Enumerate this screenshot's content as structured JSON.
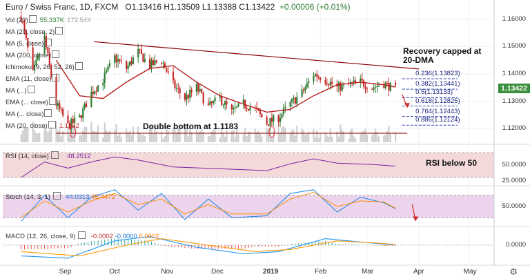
{
  "header": {
    "symbol": "Euro / Swiss Franc, 1D, FXCM",
    "ohlc": "O1.13416 H1.13509 L1.13388 C1.13422",
    "change": "+0.00006 (+0.01%)"
  },
  "indicators": [
    {
      "name": "vol",
      "label": "Vol (20)",
      "values": [
        "55.337K",
        "172.54K"
      ]
    },
    {
      "name": "ma20",
      "label": "MA (20, close, 2)",
      "values": []
    },
    {
      "name": "ma5",
      "label": "MA (5, close)",
      "values": []
    },
    {
      "name": "ma200",
      "label": "MA (200, close)",
      "values": []
    },
    {
      "name": "ichimoku",
      "label": "Ichimoku (9, 26, 52, 26)",
      "values": []
    },
    {
      "name": "ema11",
      "label": "EMA (11, close)",
      "values": []
    },
    {
      "name": "ma-b",
      "label": "MA (...)",
      "values": []
    },
    {
      "name": "ema",
      "label": "EMA (... close)",
      "values": []
    },
    {
      "name": "ma-c",
      "label": "MA (... close)",
      "values": []
    },
    {
      "name": "ma20-close",
      "label": "MA (20, close)",
      "values": [
        "1.1352"
      ]
    }
  ],
  "annotations": {
    "recovery_line1": "Recovery capped at",
    "recovery_line2": "20-DMA",
    "double_bottom": "Double bottom at 1.1183",
    "rsi_note": "RSI below 50"
  },
  "fib_levels": [
    "0.236(1.13823)",
    "0.382(1.13441)",
    "0.5(1.13133)",
    "0.618(1.12825)",
    "0.764(1.12443)",
    "0.886(1.12124)"
  ],
  "price_tag": "1.13422",
  "rsi": {
    "label": "RSI (14, close)",
    "value": "48.2512"
  },
  "stoch": {
    "label": "Stoch (14, 3, 1)",
    "k": "44.0313",
    "d": "45.4473"
  },
  "macd": {
    "label": "MACD (12, 26, close, 9)",
    "hist": "-0.0002",
    "macd": "-0.0000",
    "signal": "0.0002"
  },
  "colors": {
    "up": "#2e7d32",
    "down": "#c62828",
    "ma": "#b71c1c",
    "trend": "#8b0000",
    "rsi_band": "#f3d9d9",
    "stoch_band": "#ecd4ec",
    "fib": "#2f3fb5",
    "vol": "#cfcfcf",
    "macd_line": "#2196f3",
    "signal_line": "#ff9800"
  },
  "chart_data": {
    "type": "candlestick",
    "title": "Euro / Swiss Franc, 1D, FXCM",
    "x_tick_labels": [
      "Sep",
      "Oct",
      "Nov",
      "Dec",
      "2019",
      "Feb",
      "Mar",
      "Apr",
      "May"
    ],
    "y_ticks": [
      "1.16000",
      "1.15000",
      "1.14000",
      "1.13000",
      "1.12000"
    ],
    "y_range": [
      1.115,
      1.165
    ],
    "last_price": 1.13422,
    "double_bottom_level": 1.1183,
    "fib_retracements": [
      {
        "ratio": 0.236,
        "price": 1.13823
      },
      {
        "ratio": 0.382,
        "price": 1.13441
      },
      {
        "ratio": 0.5,
        "price": 1.13133
      },
      {
        "ratio": 0.618,
        "price": 1.12825
      },
      {
        "ratio": 0.764,
        "price": 1.12443
      },
      {
        "ratio": 0.886,
        "price": 1.12124
      }
    ],
    "trendline": {
      "from": {
        "date": "2018-10-01",
        "price": 1.1515
      },
      "to": {
        "date": "2019-04-01",
        "price": 1.1418
      }
    },
    "close_path": [
      [
        "2018-08-06",
        1.161
      ],
      [
        "2018-08-13",
        1.14
      ],
      [
        "2018-08-20",
        1.153
      ],
      [
        "2018-08-27",
        1.129
      ],
      [
        "2018-09-03",
        1.121
      ],
      [
        "2018-09-10",
        1.124
      ],
      [
        "2018-09-17",
        1.133
      ],
      [
        "2018-09-24",
        1.138
      ],
      [
        "2018-10-01",
        1.146
      ],
      [
        "2018-10-08",
        1.142
      ],
      [
        "2018-10-15",
        1.148
      ],
      [
        "2018-10-22",
        1.143
      ],
      [
        "2018-10-29",
        1.145
      ],
      [
        "2018-11-05",
        1.136
      ],
      [
        "2018-11-12",
        1.131
      ],
      [
        "2018-11-19",
        1.135
      ],
      [
        "2018-11-26",
        1.128
      ],
      [
        "2018-12-03",
        1.131
      ],
      [
        "2018-12-10",
        1.126
      ],
      [
        "2018-12-17",
        1.129
      ],
      [
        "2018-12-24",
        1.127
      ],
      [
        "2018-12-31",
        1.122
      ],
      [
        "2019-01-07",
        1.124
      ],
      [
        "2019-01-14",
        1.129
      ],
      [
        "2019-01-21",
        1.133
      ],
      [
        "2019-01-28",
        1.14
      ],
      [
        "2019-02-04",
        1.138
      ],
      [
        "2019-02-11",
        1.135
      ],
      [
        "2019-02-18",
        1.136
      ],
      [
        "2019-02-25",
        1.137
      ],
      [
        "2019-03-04",
        1.135
      ],
      [
        "2019-03-11",
        1.1365
      ],
      [
        "2019-03-18",
        1.1342
      ]
    ],
    "ma20_path": [
      [
        "2018-08-27",
        1.145
      ],
      [
        "2018-09-10",
        1.132
      ],
      [
        "2018-09-24",
        1.131
      ],
      [
        "2018-10-08",
        1.137
      ],
      [
        "2018-10-22",
        1.142
      ],
      [
        "2018-11-05",
        1.143
      ],
      [
        "2018-11-19",
        1.137
      ],
      [
        "2018-12-03",
        1.132
      ],
      [
        "2018-12-17",
        1.129
      ],
      [
        "2018-12-31",
        1.126
      ],
      [
        "2019-01-14",
        1.127
      ],
      [
        "2019-01-28",
        1.132
      ],
      [
        "2019-02-11",
        1.136
      ],
      [
        "2019-02-25",
        1.137
      ],
      [
        "2019-03-11",
        1.136
      ],
      [
        "2019-03-18",
        1.1352
      ]
    ],
    "rsi_path": [
      [
        "2018-08-06",
        30
      ],
      [
        "2018-08-20",
        55
      ],
      [
        "2018-09-03",
        45
      ],
      [
        "2018-09-17",
        55
      ],
      [
        "2018-10-01",
        63
      ],
      [
        "2018-10-15",
        58
      ],
      [
        "2018-11-05",
        47
      ],
      [
        "2018-12-03",
        44
      ],
      [
        "2018-12-31",
        41
      ],
      [
        "2019-01-14",
        52
      ],
      [
        "2019-01-28",
        60
      ],
      [
        "2019-02-11",
        53
      ],
      [
        "2019-03-04",
        51
      ],
      [
        "2019-03-18",
        48.25
      ]
    ],
    "stoch_k_path": [
      [
        "2018-08-06",
        10
      ],
      [
        "2018-08-20",
        80
      ],
      [
        "2018-09-03",
        20
      ],
      [
        "2018-09-17",
        75
      ],
      [
        "2018-10-01",
        95
      ],
      [
        "2018-10-15",
        40
      ],
      [
        "2018-10-29",
        85
      ],
      [
        "2018-11-12",
        15
      ],
      [
        "2018-11-26",
        70
      ],
      [
        "2018-12-10",
        20
      ],
      [
        "2018-12-31",
        25
      ],
      [
        "2019-01-14",
        85
      ],
      [
        "2019-01-28",
        95
      ],
      [
        "2019-02-11",
        35
      ],
      [
        "2019-02-25",
        75
      ],
      [
        "2019-03-11",
        60
      ],
      [
        "2019-03-18",
        44.03
      ]
    ],
    "stoch_d_path": [
      [
        "2018-08-06",
        20
      ],
      [
        "2018-08-20",
        65
      ],
      [
        "2018-09-03",
        35
      ],
      [
        "2018-09-17",
        65
      ],
      [
        "2018-10-01",
        85
      ],
      [
        "2018-10-15",
        55
      ],
      [
        "2018-10-29",
        70
      ],
      [
        "2018-11-12",
        30
      ],
      [
        "2018-11-26",
        55
      ],
      [
        "2018-12-10",
        30
      ],
      [
        "2018-12-31",
        30
      ],
      [
        "2019-01-14",
        70
      ],
      [
        "2019-01-28",
        88
      ],
      [
        "2019-02-11",
        50
      ],
      [
        "2019-02-25",
        65
      ],
      [
        "2019-03-11",
        62
      ],
      [
        "2019-03-18",
        45.45
      ]
    ],
    "stoch_range": [
      0,
      100
    ],
    "rsi_range": [
      20,
      80
    ],
    "rsi_ticks": [
      "50.0000",
      "25.0000"
    ],
    "stoch_ticks": [
      "50.0000"
    ],
    "macd_tick": "0.0000",
    "macd_path": [
      [
        "2018-08-06",
        -0.005
      ],
      [
        "2018-09-03",
        -0.006
      ],
      [
        "2018-10-01",
        0.002
      ],
      [
        "2018-10-22",
        0.004
      ],
      [
        "2018-11-19",
        -0.001
      ],
      [
        "2018-12-17",
        -0.004
      ],
      [
        "2019-01-07",
        -0.003
      ],
      [
        "2019-02-04",
        0.003
      ],
      [
        "2019-03-04",
        0.001
      ],
      [
        "2019-03-18",
        0.0
      ]
    ],
    "signal_path": [
      [
        "2018-08-06",
        -0.003
      ],
      [
        "2018-09-10",
        -0.005
      ],
      [
        "2018-10-08",
        0.0
      ],
      [
        "2018-10-29",
        0.003
      ],
      [
        "2018-11-26",
        0.0
      ],
      [
        "2018-12-24",
        -0.003
      ],
      [
        "2019-01-14",
        -0.002
      ],
      [
        "2019-02-11",
        0.002
      ],
      [
        "2019-03-11",
        0.0008
      ],
      [
        "2019-03-18",
        0.0002
      ]
    ],
    "macd_range": [
      -0.008,
      0.008
    ]
  }
}
